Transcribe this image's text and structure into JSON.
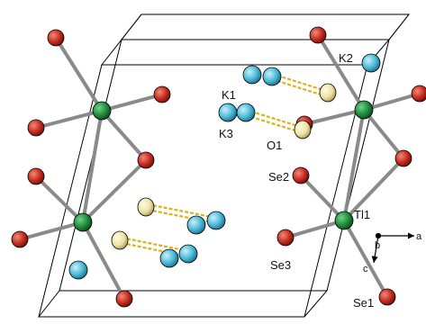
{
  "structure": {
    "labels": {
      "k1": "K1",
      "k2": "K2",
      "k3": "K3",
      "o1": "O1",
      "se1": "Se1",
      "se2": "Se2",
      "se3": "Se3",
      "tl1": "Tl1"
    },
    "axes": {
      "a": "a",
      "b": "b",
      "c": "c"
    },
    "colors": {
      "tl": "#1f8a3b",
      "se": "#c62a1e",
      "k": "#48b9d8",
      "o": "#efe2a4",
      "bond": "#8a8a8a",
      "hbond": "#d8b21b",
      "cell": "#000000"
    }
  }
}
